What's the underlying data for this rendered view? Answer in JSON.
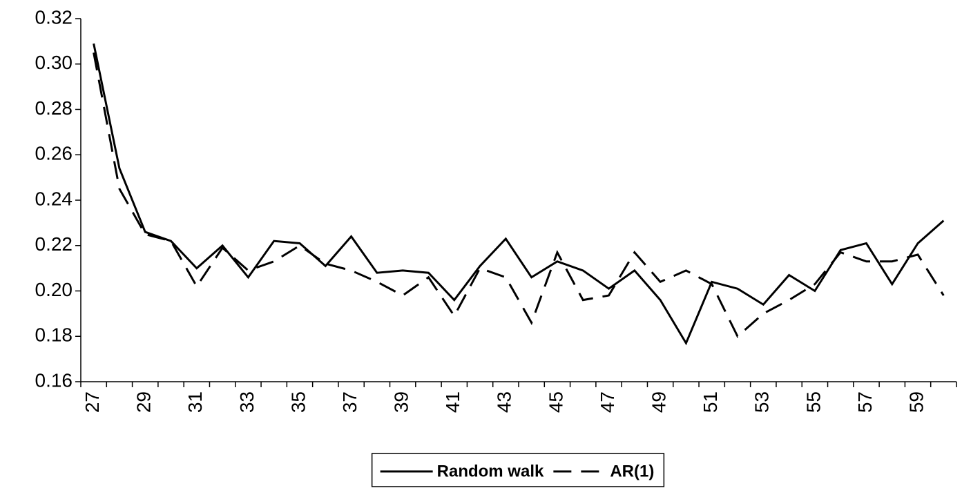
{
  "chart_data": {
    "type": "line",
    "categories": [
      "27",
      null,
      "29",
      null,
      "31",
      null,
      "33",
      null,
      "35",
      null,
      "37",
      null,
      "39",
      null,
      "41",
      null,
      "43",
      null,
      "45",
      null,
      "47",
      null,
      "49",
      null,
      "51",
      null,
      "53",
      null,
      "55",
      null,
      "57",
      null,
      "59",
      null
    ],
    "series": [
      {
        "name": "Random walk",
        "color": "#000000",
        "style": "solid",
        "values": [
          0.309,
          0.254,
          0.226,
          0.222,
          0.21,
          0.22,
          0.206,
          0.222,
          0.221,
          0.211,
          0.224,
          0.208,
          0.209,
          0.208,
          0.196,
          0.211,
          0.223,
          0.206,
          0.213,
          0.209,
          0.201,
          0.209,
          0.196,
          0.177,
          0.204,
          0.201,
          0.194,
          0.207,
          0.2,
          0.218,
          0.221,
          0.203,
          0.221,
          0.231
        ]
      },
      {
        "name": "AR(1)",
        "color": "#000000",
        "style": "dashed",
        "values": [
          0.305,
          0.245,
          0.225,
          0.222,
          0.202,
          0.219,
          0.209,
          0.213,
          0.22,
          0.212,
          0.209,
          0.204,
          0.198,
          0.206,
          0.189,
          0.21,
          0.206,
          0.186,
          0.217,
          0.196,
          0.198,
          0.217,
          0.204,
          0.209,
          0.203,
          0.18,
          0.19,
          0.196,
          0.203,
          0.217,
          0.213,
          0.213,
          0.216,
          0.198
        ]
      }
    ],
    "ylim": [
      0.16,
      0.32
    ],
    "yticks": [
      0.16,
      0.18,
      {
        "value": 0.2,
        "label": "0.20"
      },
      0.22,
      0.24,
      0.26,
      0.28,
      {
        "value": 0.3,
        "label": "0.30"
      },
      0.32
    ],
    "legend": "bottom"
  }
}
